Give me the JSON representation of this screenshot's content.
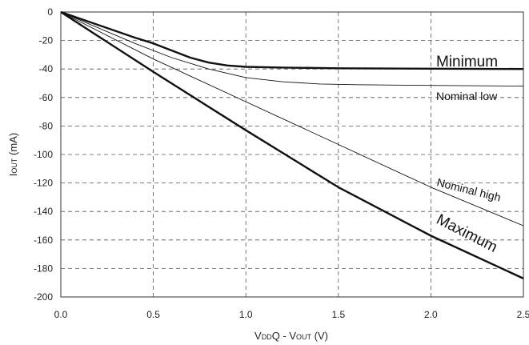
{
  "chart_data": {
    "type": "line",
    "xlabel": {
      "main1": "V",
      "sub1": "DD",
      "main2": "Q - V",
      "sub2": "OUT",
      "main3": " (V)"
    },
    "ylabel": {
      "main1": "I",
      "sub1": "OUT",
      "main2": " (mA)"
    },
    "xlim": [
      0,
      2.5
    ],
    "ylim": [
      -200,
      0
    ],
    "x_ticks": [
      "0.0",
      "0.5",
      "1.0",
      "1.5",
      "2.0",
      "2.5"
    ],
    "y_ticks": [
      "0",
      "-20",
      "-40",
      "-60",
      "-80",
      "-100",
      "-120",
      "-140",
      "-160",
      "-180",
      "-200"
    ],
    "grid": true,
    "series": [
      {
        "name": "Minimum",
        "weight": "thick",
        "x": [
          0,
          0.1,
          0.2,
          0.3,
          0.4,
          0.5,
          0.6,
          0.7,
          0.8,
          0.9,
          1.0,
          1.2,
          1.5,
          2.0,
          2.5
        ],
        "y": [
          0,
          -4.5,
          -9,
          -13.5,
          -18,
          -22,
          -27,
          -32,
          -35.5,
          -37.5,
          -38.5,
          -39,
          -39.5,
          -39.8,
          -40
        ]
      },
      {
        "name": "Nominal low",
        "weight": "thin",
        "x": [
          0,
          0.2,
          0.4,
          0.6,
          0.8,
          1.0,
          1.2,
          1.4,
          1.6,
          1.8,
          2.0,
          2.5
        ],
        "y": [
          0,
          -11,
          -22,
          -32,
          -40,
          -46,
          -49,
          -50.5,
          -51,
          -51.3,
          -51.5,
          -52
        ]
      },
      {
        "name": "Nominal high",
        "weight": "thin",
        "x": [
          0,
          0.5,
          1.0,
          1.5,
          2.0,
          2.5
        ],
        "y": [
          0,
          -33,
          -63,
          -93,
          -123,
          -150
        ]
      },
      {
        "name": "Maximum",
        "weight": "thick",
        "x": [
          0,
          0.5,
          1.0,
          1.5,
          2.0,
          2.5
        ],
        "y": [
          0,
          -42,
          -83,
          -123,
          -157,
          -187
        ]
      }
    ]
  }
}
